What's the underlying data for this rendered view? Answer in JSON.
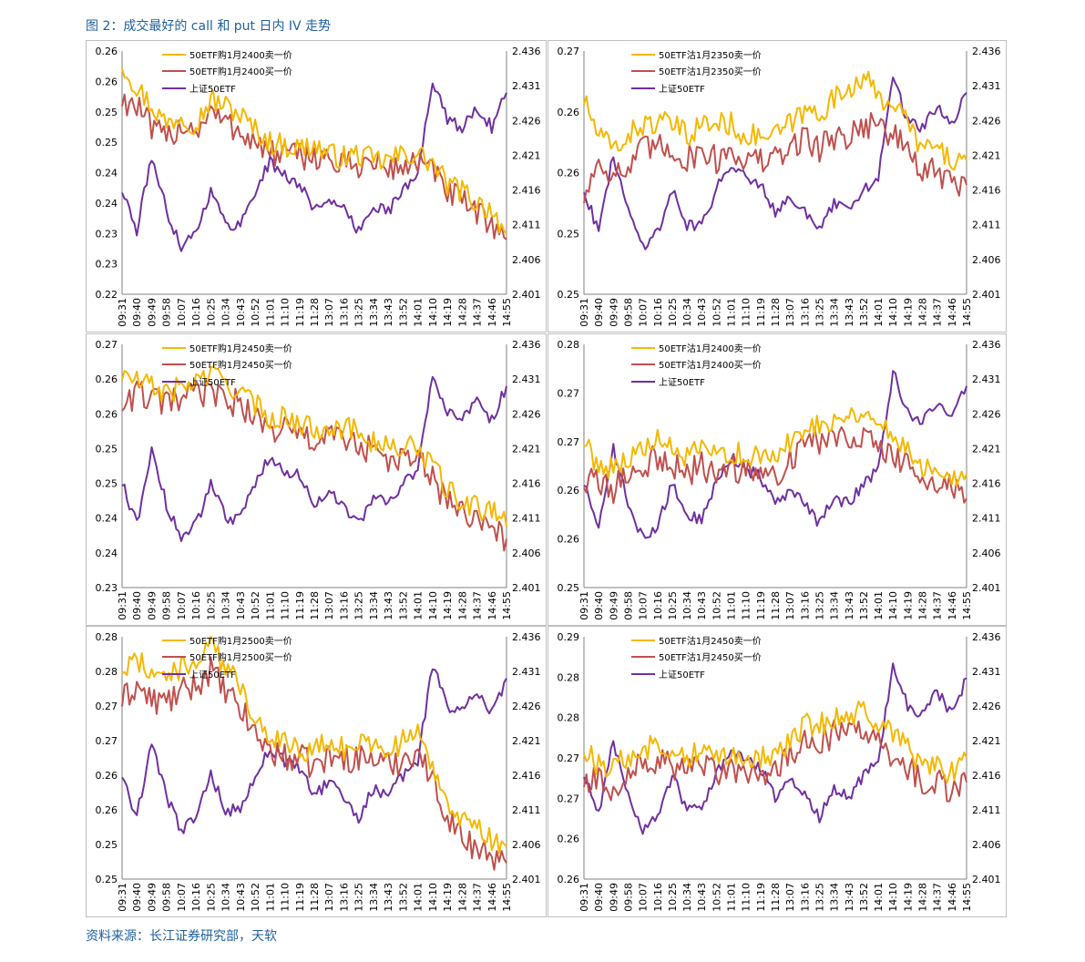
{
  "title": "图 2：成交最好的 call 和 put 日内 IV 走势",
  "source": "资料来源：长江证券研究部，天软",
  "colors": {
    "sell": "#f5b800",
    "buy": "#c0504d",
    "etf": "#7030a0"
  },
  "chart_data": [
    {
      "type": "line",
      "x": [
        "09:31",
        "09:40",
        "09:49",
        "09:58",
        "10:07",
        "10:16",
        "10:25",
        "10:34",
        "10:43",
        "10:52",
        "11:01",
        "11:10",
        "11:19",
        "11:28",
        "13:07",
        "13:16",
        "13:25",
        "13:34",
        "13:43",
        "13:52",
        "14:01",
        "14:10",
        "14:19",
        "14:28",
        "14:37",
        "14:46",
        "14:55"
      ],
      "ylim_left": [
        0.22,
        0.26
      ],
      "left_ticks": [
        "0.22",
        "0.23",
        "0.23",
        "0.24",
        "0.24",
        "0.25",
        "0.25",
        "0.26",
        "0.26"
      ],
      "ylim_right": [
        2.401,
        2.436
      ],
      "right_ticks": [
        "2.401",
        "2.406",
        "2.411",
        "2.416",
        "2.421",
        "2.426",
        "2.431",
        "2.436"
      ],
      "series": [
        {
          "name": "50ETF购1月2400卖一价",
          "color": "sell",
          "values": [
            0.258,
            0.254,
            0.251,
            0.248,
            0.2495,
            0.248,
            0.252,
            0.251,
            0.2495,
            0.247,
            0.245,
            0.2445,
            0.244,
            0.2445,
            0.243,
            0.2425,
            0.243,
            0.242,
            0.242,
            0.243,
            0.243,
            0.2415,
            0.238,
            0.237,
            0.235,
            0.234,
            0.23
          ]
        },
        {
          "name": "50ETF购1月2400买一价",
          "color": "buy",
          "values": [
            0.252,
            0.251,
            0.247,
            0.2455,
            0.248,
            0.247,
            0.25,
            0.248,
            0.247,
            0.245,
            0.243,
            0.243,
            0.2425,
            0.243,
            0.242,
            0.241,
            0.2415,
            0.2415,
            0.2405,
            0.241,
            0.242,
            0.24,
            0.237,
            0.235,
            0.233,
            0.232,
            0.229
          ]
        },
        {
          "name": "上证50ETF",
          "color": "etf",
          "axis": "right",
          "values": [
            2.416,
            2.41,
            2.421,
            2.413,
            2.408,
            2.41,
            2.416,
            2.411,
            2.411,
            2.416,
            2.42,
            2.418,
            2.417,
            2.413,
            2.415,
            2.413,
            2.41,
            2.414,
            2.413,
            2.416,
            2.418,
            2.432,
            2.426,
            2.425,
            2.428,
            2.425,
            2.43
          ]
        }
      ]
    },
    {
      "type": "line",
      "x": [
        "09:31",
        "09:40",
        "09:49",
        "09:58",
        "10:07",
        "10:16",
        "10:25",
        "10:34",
        "10:43",
        "10:52",
        "11:01",
        "11:10",
        "11:19",
        "11:28",
        "13:07",
        "13:16",
        "13:25",
        "13:34",
        "13:43",
        "13:52",
        "14:01",
        "14:10",
        "14:19",
        "14:28",
        "14:37",
        "14:46",
        "14:55"
      ],
      "ylim_left": [
        0.25,
        0.27
      ],
      "left_ticks": [
        "0.25",
        "0.25",
        "0.26",
        "0.26",
        "0.27"
      ],
      "ylim_right": [
        2.401,
        2.436
      ],
      "right_ticks": [
        "2.401",
        "2.406",
        "2.411",
        "2.416",
        "2.421",
        "2.426",
        "2.431",
        "2.436"
      ],
      "series": [
        {
          "name": "50ETF沽1月2350卖一价",
          "color": "sell",
          "values": [
            0.266,
            0.263,
            0.262,
            0.263,
            0.264,
            0.264,
            0.264,
            0.263,
            0.264,
            0.264,
            0.264,
            0.263,
            0.263,
            0.263,
            0.264,
            0.265,
            0.265,
            0.266,
            0.267,
            0.268,
            0.266,
            0.266,
            0.264,
            0.262,
            0.262,
            0.261,
            0.261
          ]
        },
        {
          "name": "50ETF沽1月2350买一价",
          "color": "buy",
          "values": [
            0.258,
            0.261,
            0.26,
            0.26,
            0.262,
            0.262,
            0.262,
            0.261,
            0.262,
            0.261,
            0.262,
            0.261,
            0.261,
            0.261,
            0.262,
            0.263,
            0.262,
            0.263,
            0.263,
            0.264,
            0.264,
            0.263,
            0.262,
            0.26,
            0.26,
            0.259,
            0.259
          ]
        },
        {
          "name": "上证50ETF",
          "color": "etf",
          "axis": "right",
          "values": [
            2.416,
            2.41,
            2.421,
            2.413,
            2.408,
            2.41,
            2.416,
            2.411,
            2.411,
            2.416,
            2.42,
            2.418,
            2.417,
            2.413,
            2.415,
            2.413,
            2.41,
            2.414,
            2.413,
            2.416,
            2.418,
            2.432,
            2.426,
            2.425,
            2.428,
            2.425,
            2.43
          ]
        }
      ]
    },
    {
      "type": "line",
      "x": [
        "09:31",
        "09:40",
        "09:49",
        "09:58",
        "10:07",
        "10:16",
        "10:25",
        "10:34",
        "10:43",
        "10:52",
        "11:01",
        "11:10",
        "11:19",
        "11:28",
        "13:07",
        "13:16",
        "13:25",
        "13:34",
        "13:43",
        "13:52",
        "14:01",
        "14:10",
        "14:19",
        "14:28",
        "14:37",
        "14:46",
        "14:55"
      ],
      "ylim_left": [
        0.23,
        0.27
      ],
      "left_ticks": [
        "0.23",
        "0.24",
        "0.24",
        "0.25",
        "0.25",
        "0.26",
        "0.26",
        "0.27"
      ],
      "ylim_right": [
        2.401,
        2.436
      ],
      "right_ticks": [
        "2.401",
        "2.406",
        "2.411",
        "2.416",
        "2.421",
        "2.426",
        "2.431",
        "2.436"
      ],
      "series": [
        {
          "name": "50ETF购1月2450卖一价",
          "color": "sell",
          "values": [
            0.265,
            0.264,
            0.263,
            0.262,
            0.263,
            0.264,
            0.265,
            0.264,
            0.262,
            0.26,
            0.258,
            0.258,
            0.257,
            0.256,
            0.257,
            0.256,
            0.256,
            0.254,
            0.253,
            0.253,
            0.253,
            0.25,
            0.246,
            0.244,
            0.243,
            0.243,
            0.24
          ]
        },
        {
          "name": "50ETF购1月2450买一价",
          "color": "buy",
          "values": [
            0.26,
            0.262,
            0.261,
            0.26,
            0.261,
            0.262,
            0.262,
            0.261,
            0.26,
            0.258,
            0.256,
            0.256,
            0.255,
            0.254,
            0.255,
            0.254,
            0.254,
            0.252,
            0.251,
            0.251,
            0.251,
            0.248,
            0.244,
            0.242,
            0.241,
            0.24,
            0.238
          ]
        },
        {
          "name": "上证50ETF",
          "color": "etf",
          "axis": "right",
          "values": [
            2.416,
            2.41,
            2.421,
            2.413,
            2.408,
            2.41,
            2.416,
            2.411,
            2.411,
            2.416,
            2.42,
            2.418,
            2.417,
            2.413,
            2.415,
            2.413,
            2.41,
            2.414,
            2.413,
            2.416,
            2.418,
            2.432,
            2.426,
            2.425,
            2.428,
            2.425,
            2.43
          ]
        }
      ]
    },
    {
      "type": "line",
      "x": [
        "09:31",
        "09:40",
        "09:49",
        "09:58",
        "10:07",
        "10:16",
        "10:25",
        "10:34",
        "10:43",
        "10:52",
        "11:01",
        "11:10",
        "11:19",
        "11:28",
        "13:07",
        "13:16",
        "13:25",
        "13:34",
        "13:43",
        "13:52",
        "14:01",
        "14:10",
        "14:19",
        "14:28",
        "14:37",
        "14:46",
        "14:55"
      ],
      "ylim_left": [
        0.25,
        0.28
      ],
      "left_ticks": [
        "0.25",
        "0.26",
        "0.26",
        "0.27",
        "0.27",
        "0.28"
      ],
      "ylim_right": [
        2.401,
        2.436
      ],
      "right_ticks": [
        "2.401",
        "2.406",
        "2.411",
        "2.416",
        "2.421",
        "2.426",
        "2.431",
        "2.436"
      ],
      "series": [
        {
          "name": "50ETF沽1月2400卖一价",
          "color": "sell",
          "values": [
            0.268,
            0.265,
            0.265,
            0.266,
            0.267,
            0.268,
            0.267,
            0.266,
            0.267,
            0.266,
            0.267,
            0.266,
            0.266,
            0.266,
            0.268,
            0.27,
            0.27,
            0.271,
            0.271,
            0.272,
            0.27,
            0.269,
            0.267,
            0.265,
            0.265,
            0.264,
            0.264
          ]
        },
        {
          "name": "50ETF沽1月2400买一价",
          "color": "buy",
          "values": [
            0.263,
            0.263,
            0.262,
            0.264,
            0.265,
            0.266,
            0.265,
            0.264,
            0.265,
            0.264,
            0.265,
            0.264,
            0.264,
            0.264,
            0.266,
            0.268,
            0.268,
            0.269,
            0.269,
            0.269,
            0.268,
            0.266,
            0.265,
            0.263,
            0.263,
            0.262,
            0.261
          ]
        },
        {
          "name": "上证50ETF",
          "color": "etf",
          "axis": "right",
          "values": [
            2.416,
            2.41,
            2.421,
            2.413,
            2.408,
            2.41,
            2.416,
            2.411,
            2.411,
            2.416,
            2.42,
            2.418,
            2.417,
            2.413,
            2.415,
            2.413,
            2.41,
            2.414,
            2.413,
            2.416,
            2.418,
            2.432,
            2.426,
            2.425,
            2.428,
            2.425,
            2.43
          ]
        }
      ]
    },
    {
      "type": "line",
      "x": [
        "09:31",
        "09:40",
        "09:49",
        "09:58",
        "10:07",
        "10:16",
        "10:25",
        "10:34",
        "10:43",
        "10:52",
        "11:01",
        "11:10",
        "11:19",
        "11:28",
        "13:07",
        "13:16",
        "13:25",
        "13:34",
        "13:43",
        "13:52",
        "14:01",
        "14:10",
        "14:19",
        "14:28",
        "14:37",
        "14:46",
        "14:55"
      ],
      "ylim_left": [
        0.25,
        0.28
      ],
      "left_ticks": [
        "0.25",
        "0.25",
        "0.26",
        "0.26",
        "0.27",
        "0.27",
        "0.28",
        "0.28"
      ],
      "ylim_right": [
        2.401,
        2.436
      ],
      "right_ticks": [
        "2.401",
        "2.406",
        "2.411",
        "2.416",
        "2.421",
        "2.426",
        "2.431",
        "2.436"
      ],
      "series": [
        {
          "name": "50ETF购1月2500卖一价",
          "color": "sell",
          "values": [
            0.276,
            0.277,
            0.276,
            0.275,
            0.276,
            0.277,
            0.279,
            0.276,
            0.274,
            0.27,
            0.268,
            0.267,
            0.266,
            0.266,
            0.267,
            0.266,
            0.267,
            0.267,
            0.266,
            0.267,
            0.268,
            0.264,
            0.26,
            0.257,
            0.256,
            0.255,
            0.254
          ]
        },
        {
          "name": "50ETF购1月2500买一价",
          "color": "buy",
          "values": [
            0.272,
            0.274,
            0.272,
            0.272,
            0.273,
            0.274,
            0.276,
            0.273,
            0.271,
            0.268,
            0.266,
            0.265,
            0.265,
            0.264,
            0.265,
            0.265,
            0.265,
            0.265,
            0.264,
            0.265,
            0.266,
            0.262,
            0.258,
            0.255,
            0.254,
            0.253,
            0.252
          ]
        },
        {
          "name": "上证50ETF",
          "color": "etf",
          "axis": "right",
          "values": [
            2.416,
            2.41,
            2.421,
            2.413,
            2.408,
            2.41,
            2.416,
            2.411,
            2.411,
            2.416,
            2.42,
            2.418,
            2.417,
            2.413,
            2.415,
            2.413,
            2.41,
            2.414,
            2.413,
            2.416,
            2.418,
            2.432,
            2.426,
            2.425,
            2.428,
            2.425,
            2.43
          ]
        }
      ]
    },
    {
      "type": "line",
      "x": [
        "09:31",
        "09:40",
        "09:49",
        "09:58",
        "10:07",
        "10:16",
        "10:25",
        "10:34",
        "10:43",
        "10:52",
        "11:01",
        "11:10",
        "11:19",
        "11:28",
        "13:07",
        "13:16",
        "13:25",
        "13:34",
        "13:43",
        "13:52",
        "14:01",
        "14:10",
        "14:19",
        "14:28",
        "14:37",
        "14:46",
        "14:55"
      ],
      "ylim_left": [
        0.26,
        0.29
      ],
      "left_ticks": [
        "0.26",
        "0.26",
        "0.27",
        "0.27",
        "0.28",
        "0.28",
        "0.29"
      ],
      "ylim_right": [
        2.401,
        2.436
      ],
      "right_ticks": [
        "2.401",
        "2.406",
        "2.411",
        "2.416",
        "2.421",
        "2.426",
        "2.431",
        "2.436"
      ],
      "series": [
        {
          "name": "50ETF沽1月2450卖一价",
          "color": "sell",
          "values": [
            0.276,
            0.274,
            0.274,
            0.275,
            0.276,
            0.277,
            0.276,
            0.275,
            0.276,
            0.275,
            0.276,
            0.275,
            0.275,
            0.275,
            0.277,
            0.279,
            0.279,
            0.28,
            0.28,
            0.281,
            0.279,
            0.278,
            0.276,
            0.274,
            0.274,
            0.273,
            0.275
          ]
        },
        {
          "name": "50ETF沽1月2450买一价",
          "color": "buy",
          "values": [
            0.272,
            0.272,
            0.271,
            0.273,
            0.274,
            0.275,
            0.274,
            0.273,
            0.274,
            0.273,
            0.274,
            0.273,
            0.273,
            0.273,
            0.275,
            0.277,
            0.277,
            0.278,
            0.278,
            0.278,
            0.277,
            0.275,
            0.274,
            0.272,
            0.272,
            0.271,
            0.272
          ]
        },
        {
          "name": "上证50ETF",
          "color": "etf",
          "axis": "right",
          "values": [
            2.416,
            2.41,
            2.421,
            2.413,
            2.408,
            2.41,
            2.416,
            2.411,
            2.411,
            2.416,
            2.42,
            2.418,
            2.417,
            2.413,
            2.415,
            2.413,
            2.41,
            2.414,
            2.413,
            2.416,
            2.418,
            2.432,
            2.426,
            2.425,
            2.428,
            2.425,
            2.43
          ]
        }
      ]
    }
  ]
}
